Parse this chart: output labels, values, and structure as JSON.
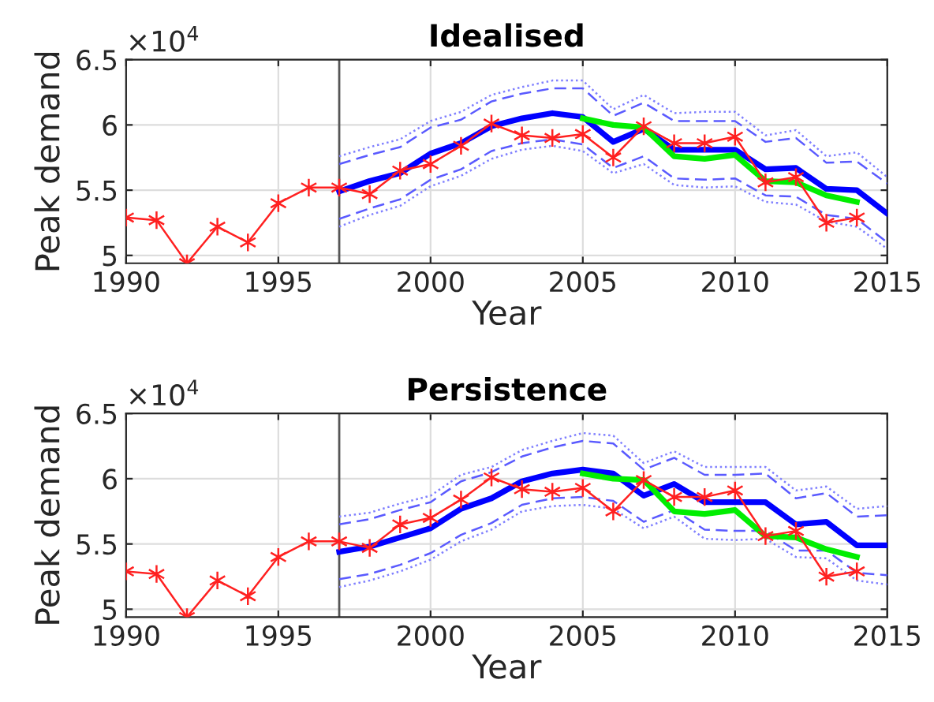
{
  "chart_data": [
    {
      "type": "line",
      "title": "Idealised",
      "xlabel": "Year",
      "ylabel": "Peak demand",
      "annotations": [
        "×10$^{4}$"
      ],
      "xlim": [
        1990,
        2015
      ],
      "xticks": [
        1990,
        1995,
        2000,
        2005,
        2010,
        2015
      ],
      "ylim": [
        4.94,
        6.5
      ],
      "yticks": [
        5,
        5.5,
        6,
        6.5
      ],
      "grid": true,
      "legend": false,
      "ref_lines": [
        {
          "axis": "x",
          "value": 1997,
          "color": "#555555",
          "line_style": "solid"
        }
      ],
      "series": [
        {
          "color": "#8080ff",
          "line_style": "dotted",
          "x": [
            1997,
            1998,
            1999,
            2000,
            2001,
            2002,
            2003,
            2004,
            2005,
            2006,
            2007,
            2008,
            2009,
            2010,
            2011,
            2012,
            2013,
            2014,
            2015
          ],
          "values": [
            5.76,
            5.83,
            5.89,
            6.03,
            6.1,
            6.23,
            6.29,
            6.34,
            6.34,
            6.12,
            6.23,
            6.09,
            6.1,
            6.1,
            5.92,
            5.96,
            5.76,
            5.79,
            5.6
          ]
        },
        {
          "color": "#8080ff",
          "line_style": "dotted",
          "x": [
            1997,
            1998,
            1999,
            2000,
            2001,
            2002,
            2003,
            2004,
            2005,
            2006,
            2007,
            2008,
            2009,
            2010,
            2011,
            2012,
            2013,
            2014,
            2015
          ],
          "values": [
            5.22,
            5.31,
            5.38,
            5.53,
            5.61,
            5.74,
            5.81,
            5.84,
            5.8,
            5.63,
            5.7,
            5.54,
            5.52,
            5.53,
            5.41,
            5.39,
            5.26,
            5.22,
            5.05
          ]
        },
        {
          "color": "#5a5aff",
          "line_style": "dashed",
          "x": [
            1997,
            1998,
            1999,
            2000,
            2001,
            2002,
            2003,
            2004,
            2005,
            2006,
            2007,
            2008,
            2009,
            2010,
            2011,
            2012,
            2013,
            2014,
            2015
          ],
          "values": [
            5.7,
            5.77,
            5.83,
            5.98,
            6.04,
            6.18,
            6.24,
            6.28,
            6.28,
            6.07,
            6.17,
            6.03,
            6.03,
            6.03,
            5.87,
            5.9,
            5.71,
            5.72,
            5.55
          ]
        },
        {
          "color": "#5a5aff",
          "line_style": "dashed",
          "x": [
            1997,
            1998,
            1999,
            2000,
            2001,
            2002,
            2003,
            2004,
            2005,
            2006,
            2007,
            2008,
            2009,
            2010,
            2011,
            2012,
            2013,
            2014,
            2015
          ],
          "values": [
            5.28,
            5.36,
            5.43,
            5.58,
            5.66,
            5.8,
            5.86,
            5.89,
            5.85,
            5.67,
            5.76,
            5.59,
            5.58,
            5.59,
            5.46,
            5.45,
            5.31,
            5.28,
            5.1
          ]
        },
        {
          "color": "#0000ff",
          "line_style": "solid",
          "x": [
            1997,
            1998,
            1999,
            2000,
            2001,
            2002,
            2003,
            2004,
            2005,
            2006,
            2007,
            2008,
            2009,
            2010,
            2011,
            2012,
            2013,
            2014,
            2015
          ],
          "values": [
            5.49,
            5.57,
            5.63,
            5.78,
            5.86,
            5.99,
            6.05,
            6.09,
            6.06,
            5.87,
            5.97,
            5.81,
            5.81,
            5.81,
            5.66,
            5.67,
            5.51,
            5.5,
            5.32
          ]
        },
        {
          "color": "#00ee00",
          "line_style": "solid",
          "x": [
            2005,
            2006,
            2007,
            2008,
            2009,
            2010,
            2011,
            2012,
            2013,
            2014
          ],
          "values": [
            6.05,
            6.0,
            5.98,
            5.76,
            5.74,
            5.77,
            5.57,
            5.56,
            5.46,
            5.41
          ]
        },
        {
          "color": "#ff2020",
          "line_style": "solid",
          "marker": "cross",
          "x": [
            1990,
            1991,
            1992,
            1993,
            1994,
            1995,
            1996,
            1997,
            1998,
            1999,
            2000,
            2001,
            2002,
            2003,
            2004,
            2005,
            2006,
            2007,
            2008,
            2009,
            2010,
            2011,
            2012,
            2013,
            2014
          ],
          "values": [
            5.29,
            5.27,
            4.94,
            5.22,
            5.1,
            5.4,
            5.52,
            5.52,
            5.47,
            5.65,
            5.7,
            5.84,
            6.01,
            5.92,
            5.9,
            5.93,
            5.75,
            5.99,
            5.86,
            5.86,
            5.91,
            5.56,
            5.6,
            5.25,
            5.29
          ]
        }
      ]
    },
    {
      "type": "line",
      "title": "Persistence",
      "xlabel": "Year",
      "ylabel": "Peak demand",
      "annotations": [
        "×10$^{4}$"
      ],
      "xlim": [
        1990,
        2015
      ],
      "xticks": [
        1990,
        1995,
        2000,
        2005,
        2010,
        2015
      ],
      "ylim": [
        4.94,
        6.5
      ],
      "yticks": [
        5,
        5.5,
        6,
        6.5
      ],
      "grid": true,
      "legend": false,
      "ref_lines": [
        {
          "axis": "x",
          "value": 1997,
          "color": "#555555",
          "line_style": "solid"
        }
      ],
      "series": [
        {
          "color": "#8080ff",
          "line_style": "dotted",
          "x": [
            1997,
            1998,
            1999,
            2000,
            2001,
            2002,
            2003,
            2004,
            2005,
            2006,
            2007,
            2008,
            2009,
            2010,
            2011,
            2012,
            2013,
            2014,
            2015
          ],
          "values": [
            5.71,
            5.74,
            5.81,
            5.87,
            6.03,
            6.09,
            6.22,
            6.29,
            6.35,
            6.33,
            6.12,
            6.21,
            6.09,
            6.09,
            6.09,
            5.91,
            5.94,
            5.77,
            5.79
          ]
        },
        {
          "color": "#8080ff",
          "line_style": "dotted",
          "x": [
            1997,
            1998,
            1999,
            2000,
            2001,
            2002,
            2003,
            2004,
            2005,
            2006,
            2007,
            2008,
            2009,
            2010,
            2011,
            2012,
            2013,
            2014,
            2015
          ],
          "values": [
            5.17,
            5.22,
            5.29,
            5.38,
            5.52,
            5.61,
            5.75,
            5.79,
            5.8,
            5.77,
            5.62,
            5.71,
            5.54,
            5.53,
            5.54,
            5.4,
            5.39,
            5.22,
            5.19
          ]
        },
        {
          "color": "#5a5aff",
          "line_style": "dashed",
          "x": [
            1997,
            1998,
            1999,
            2000,
            2001,
            2002,
            2003,
            2004,
            2005,
            2006,
            2007,
            2008,
            2009,
            2010,
            2011,
            2012,
            2013,
            2014,
            2015
          ],
          "values": [
            5.65,
            5.69,
            5.76,
            5.82,
            5.98,
            6.05,
            6.17,
            6.24,
            6.29,
            6.27,
            6.07,
            6.16,
            6.03,
            6.03,
            6.04,
            5.85,
            5.89,
            5.71,
            5.72
          ]
        },
        {
          "color": "#5a5aff",
          "line_style": "dashed",
          "x": [
            1997,
            1998,
            1999,
            2000,
            2001,
            2002,
            2003,
            2004,
            2005,
            2006,
            2007,
            2008,
            2009,
            2010,
            2011,
            2012,
            2013,
            2014,
            2015
          ],
          "values": [
            5.23,
            5.27,
            5.34,
            5.43,
            5.57,
            5.66,
            5.8,
            5.85,
            5.86,
            5.83,
            5.67,
            5.76,
            5.61,
            5.6,
            5.6,
            5.45,
            5.45,
            5.28,
            5.26
          ]
        },
        {
          "color": "#0000ff",
          "line_style": "solid",
          "x": [
            1997,
            1998,
            1999,
            2000,
            2001,
            2002,
            2003,
            2004,
            2005,
            2006,
            2007,
            2008,
            2009,
            2010,
            2011,
            2012,
            2013,
            2014,
            2015
          ],
          "values": [
            5.44,
            5.48,
            5.55,
            5.62,
            5.77,
            5.85,
            5.98,
            6.04,
            6.07,
            6.04,
            5.87,
            5.96,
            5.82,
            5.82,
            5.82,
            5.65,
            5.67,
            5.49,
            5.49
          ]
        },
        {
          "color": "#00ee00",
          "line_style": "solid",
          "x": [
            2005,
            2006,
            2007,
            2008,
            2009,
            2010,
            2011,
            2012,
            2013,
            2014
          ],
          "values": [
            6.04,
            6.0,
            5.99,
            5.75,
            5.73,
            5.76,
            5.56,
            5.55,
            5.46,
            5.4
          ]
        },
        {
          "color": "#ff2020",
          "line_style": "solid",
          "marker": "cross",
          "x": [
            1990,
            1991,
            1992,
            1993,
            1994,
            1995,
            1996,
            1997,
            1998,
            1999,
            2000,
            2001,
            2002,
            2003,
            2004,
            2005,
            2006,
            2007,
            2008,
            2009,
            2010,
            2011,
            2012,
            2013,
            2014
          ],
          "values": [
            5.29,
            5.27,
            4.94,
            5.22,
            5.1,
            5.4,
            5.52,
            5.52,
            5.47,
            5.65,
            5.7,
            5.84,
            6.01,
            5.92,
            5.9,
            5.93,
            5.75,
            5.99,
            5.86,
            5.86,
            5.91,
            5.56,
            5.6,
            5.25,
            5.29
          ]
        }
      ]
    }
  ]
}
